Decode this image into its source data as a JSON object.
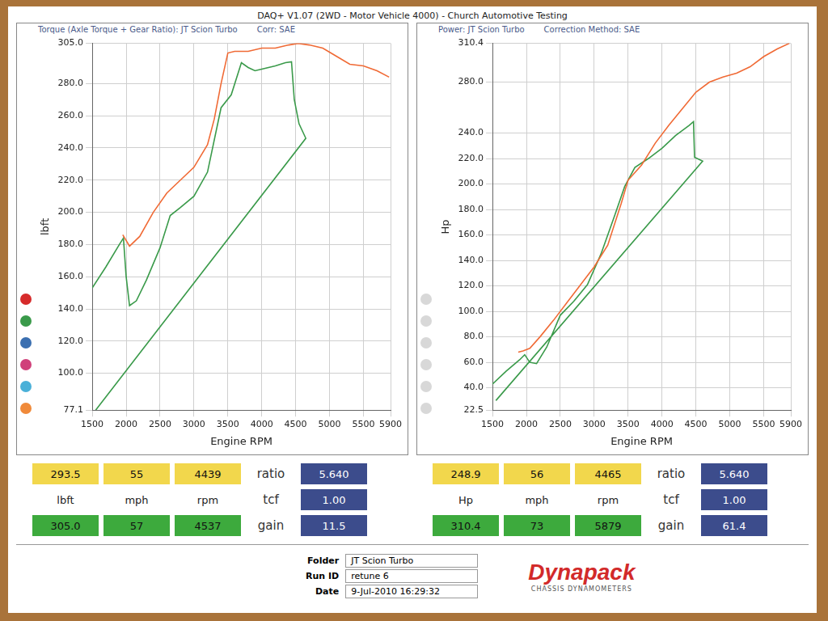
{
  "page": {
    "title": "DAQ+ V1.07 (2WD - Motor Vehicle 4000) - Church Automotive Testing",
    "readouts": [
      {
        "top": [
          "293.5",
          "55",
          "4439"
        ],
        "units": [
          "lbft",
          "mph",
          "rpm"
        ],
        "bottom": [
          "305.0",
          "57",
          "4537"
        ],
        "params": [
          [
            "ratio",
            "5.640"
          ],
          [
            "tcf",
            "1.00"
          ],
          [
            "gain",
            "11.5"
          ]
        ]
      },
      {
        "top": [
          "248.9",
          "56",
          "4465"
        ],
        "units": [
          "Hp",
          "mph",
          "rpm"
        ],
        "bottom": [
          "310.4",
          "73",
          "5879"
        ],
        "params": [
          [
            "ratio",
            "5.640"
          ],
          [
            "tcf",
            "1.00"
          ],
          [
            "gain",
            "61.4"
          ]
        ]
      }
    ],
    "footer": {
      "rows": [
        [
          "Folder",
          "JT Scion Turbo"
        ],
        [
          "Run ID",
          "retune 6"
        ],
        [
          "Date",
          "9-Jul-2010 16:29:32"
        ]
      ],
      "logo": "Dynapack",
      "logo_sub": "CHASSIS DYNAMOMETERS"
    }
  },
  "chart_data": [
    {
      "type": "line",
      "title": "Torque (Axle Torque + Gear Ratio): JT Scion Turbo",
      "subtitle": "Corr: SAE",
      "x_label": "Engine RPM",
      "y_label": "lbft",
      "xlim": [
        1500,
        5900
      ],
      "xticks": [
        1500,
        2000,
        2500,
        3000,
        3500,
        4000,
        4500,
        5000,
        5500,
        5900
      ],
      "ylim": [
        77.1,
        305
      ],
      "yticks": [
        77.1,
        {
          "value": 100,
          "label": "100.0"
        },
        {
          "value": 120,
          "label": "120.0"
        },
        {
          "value": 140,
          "label": "140.0"
        },
        {
          "value": 160,
          "label": "160.0"
        },
        {
          "value": 180,
          "label": "180.0"
        },
        {
          "value": 200,
          "label": "200.0"
        },
        {
          "value": 220,
          "label": "220.0"
        },
        {
          "value": 240,
          "label": "240.0"
        },
        {
          "value": 260,
          "label": "260.0"
        },
        {
          "value": 280,
          "label": "280.0"
        },
        {
          "value": 305,
          "label": "305.0"
        }
      ],
      "grid": true,
      "series": [
        {
          "color": "#f06a35",
          "x": [
            1950,
            2050,
            2200,
            2400,
            2600,
            2800,
            3000,
            3100,
            3200,
            3300,
            3400,
            3500,
            3600,
            3800,
            4000,
            4200,
            4400,
            4537,
            4700,
            4900,
            5100,
            5300,
            5500,
            5700,
            5879
          ],
          "values": [
            186,
            179,
            185,
            200,
            212,
            220,
            228,
            235,
            242,
            258,
            280,
            299,
            300,
            300,
            302,
            302,
            304,
            305,
            304,
            302,
            297,
            292,
            291,
            288,
            284
          ]
        },
        {
          "color": "#3a9a4a",
          "x": [
            1500,
            1700,
            1900,
            1960,
            2000,
            2050,
            2150,
            2300,
            2500,
            2650,
            2800,
            3000,
            3200,
            3400,
            3550,
            3700,
            3800,
            3900,
            4000,
            4200,
            4350,
            4439,
            4480,
            4550,
            4650,
            1550
          ],
          "values": [
            153,
            166,
            180,
            184,
            160,
            142,
            145,
            158,
            178,
            198,
            203,
            210,
            225,
            265,
            273,
            293,
            290,
            288,
            289,
            291,
            293,
            293.5,
            270,
            255,
            246,
            77.1
          ]
        }
      ]
    },
    {
      "type": "line",
      "title": "Power: JT Scion Turbo",
      "subtitle": "Correction Method: SAE",
      "x_label": "Engine RPM",
      "y_label": "Hp",
      "xlim": [
        1500,
        5900
      ],
      "xticks": [
        1500,
        2000,
        2500,
        3000,
        3500,
        4000,
        4500,
        5000,
        5500,
        5900
      ],
      "ylim": [
        22.5,
        310.4
      ],
      "yticks": [
        22.5,
        {
          "value": 40,
          "label": "40.0"
        },
        {
          "value": 60,
          "label": "60.0"
        },
        {
          "value": 80,
          "label": "80.0"
        },
        {
          "value": 100,
          "label": "100.0"
        },
        {
          "value": 120,
          "label": "120.0"
        },
        {
          "value": 140,
          "label": "140.0"
        },
        {
          "value": 160,
          "label": "160.0"
        },
        {
          "value": 180,
          "label": "180.0"
        },
        {
          "value": 200,
          "label": "200.0"
        },
        {
          "value": 220,
          "label": "220.0"
        },
        {
          "value": 240,
          "label": "240.0"
        },
        {
          "value": 280,
          "label": "280.0"
        },
        310.4
      ],
      "grid": true,
      "series": [
        {
          "color": "#f06a35",
          "x": [
            1880,
            1950,
            2050,
            2200,
            2400,
            2600,
            2800,
            3000,
            3200,
            3400,
            3500,
            3700,
            3900,
            4100,
            4300,
            4500,
            4700,
            4900,
            5100,
            5300,
            5500,
            5700,
            5879
          ],
          "values": [
            68,
            69,
            71,
            80,
            93,
            107,
            121,
            135,
            152,
            185,
            203,
            215,
            232,
            246,
            259,
            272,
            280,
            284,
            287,
            292,
            300,
            306,
            310.4
          ]
        },
        {
          "color": "#3a9a4a",
          "x": [
            1500,
            1700,
            1900,
            1975,
            2050,
            2150,
            2300,
            2500,
            2700,
            2900,
            3100,
            3300,
            3450,
            3600,
            3800,
            4000,
            4200,
            4400,
            4465,
            4480,
            4600,
            1550
          ],
          "values": [
            43,
            53,
            62,
            66,
            60,
            59,
            72,
            97,
            108,
            121,
            145,
            175,
            198,
            213,
            220,
            228,
            238,
            246,
            248.9,
            221,
            218,
            30
          ]
        }
      ]
    }
  ]
}
